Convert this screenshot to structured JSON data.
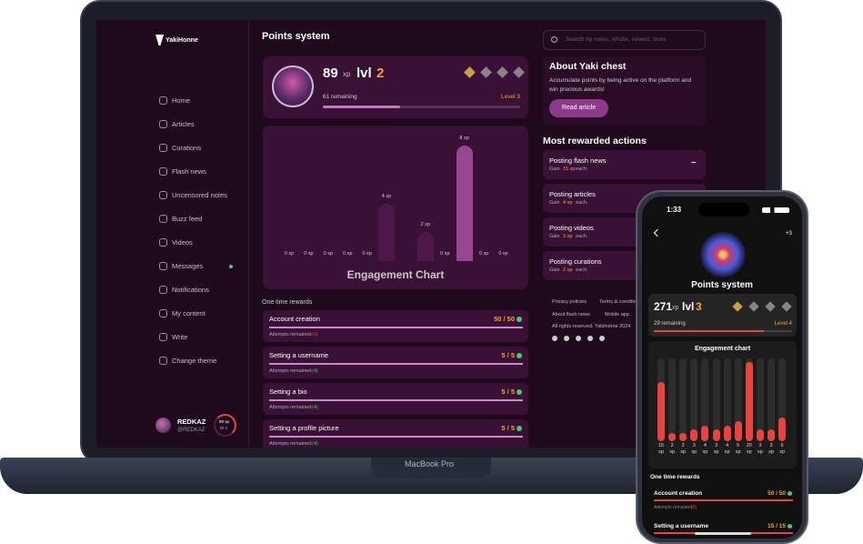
{
  "laptop": {
    "brand": "MacBook Pro",
    "logo": "YakiHonne",
    "nav": [
      "Home",
      "Articles",
      "Curations",
      "Flash news",
      "Uncensored notes",
      "Buzz feed",
      "Videos",
      "Messages",
      "Notifications",
      "My content",
      "Write",
      "Change theme"
    ],
    "user": {
      "name": "REDKAZ",
      "handle": "@REDKAZ",
      "xp": "89 xp",
      "level": "lvl 2"
    },
    "page_title": "Points system",
    "profile": {
      "xp": "89",
      "xp_unit": "xp",
      "lvl_label": "lvl",
      "lvl": "2",
      "remaining": "61 remaining",
      "next_level": "Level 3"
    },
    "engagement_chart": {
      "title": "Engagement Chart",
      "values": [
        0,
        0,
        0,
        0,
        0,
        4,
        null,
        2,
        0,
        8,
        0,
        0
      ],
      "value_labels": [
        "0 xp",
        "0 xp",
        "0 xp",
        "0 xp",
        "0 xp",
        "4 xp",
        null,
        "2 xp",
        "0 xp",
        "8 xp",
        "0 xp",
        "0 xp"
      ]
    },
    "rewards": {
      "title": "One time rewards",
      "items": [
        {
          "name": "Account creation",
          "score": "50 / 50",
          "attempts": "Attempts remained",
          "remaining": "(0)"
        },
        {
          "name": "Setting a username",
          "score": "5 / 5",
          "attempts": "Attempts remained",
          "remaining": "(4)"
        },
        {
          "name": "Setting a bio",
          "score": "5 / 5",
          "attempts": "Attempts remained",
          "remaining": "(4)"
        },
        {
          "name": "Setting a profile picture",
          "score": "5 / 5",
          "attempts": "Attempts remained",
          "remaining": "(4)"
        }
      ]
    },
    "search_placeholder": "Search by notes, nPubs, nevent, more",
    "about": {
      "title": "About Yaki chest",
      "text": "Accumulate points by being active on the platform and win precious awards!",
      "button": "Read article"
    },
    "actions": {
      "title": "Most rewarded actions",
      "items": [
        {
          "name": "Posting flash news",
          "gain": "Gain",
          "xp": "15 xp",
          "each": "each."
        },
        {
          "name": "Posting articles",
          "gain": "Gain",
          "xp": "4 xp",
          "each": "each."
        },
        {
          "name": "Posting videos",
          "gain": "Gain",
          "xp": "3 xp",
          "each": "each."
        },
        {
          "name": "Posting curations",
          "gain": "Gain",
          "xp": "2 xp",
          "each": "each."
        }
      ]
    },
    "footer": [
      "Privacy policies",
      "Terms & conditions",
      "About flash news",
      "Mobile app",
      "All rights reserved. Yakihonne 2024"
    ]
  },
  "phone": {
    "time": "1:33",
    "badge": "+3",
    "page_title": "Points system",
    "profile": {
      "xp": "271",
      "xp_unit": "xp",
      "lvl_label": "lvl",
      "lvl": "3",
      "remaining": "29 remaining",
      "next_level": "Level 4"
    },
    "engagement_chart": {
      "title": "Engagement chart",
      "unit": "xp",
      "values": [
        15,
        2,
        2,
        3,
        4,
        3,
        4,
        5,
        20,
        3,
        3,
        6
      ]
    },
    "rewards": {
      "title": "One time rewards",
      "items": [
        {
          "name": "Account creation",
          "score": "50 / 50",
          "attempts": "Attempts remained",
          "remaining": "(0)"
        },
        {
          "name": "Setting a username",
          "score": "15 / 15"
        }
      ]
    }
  }
}
